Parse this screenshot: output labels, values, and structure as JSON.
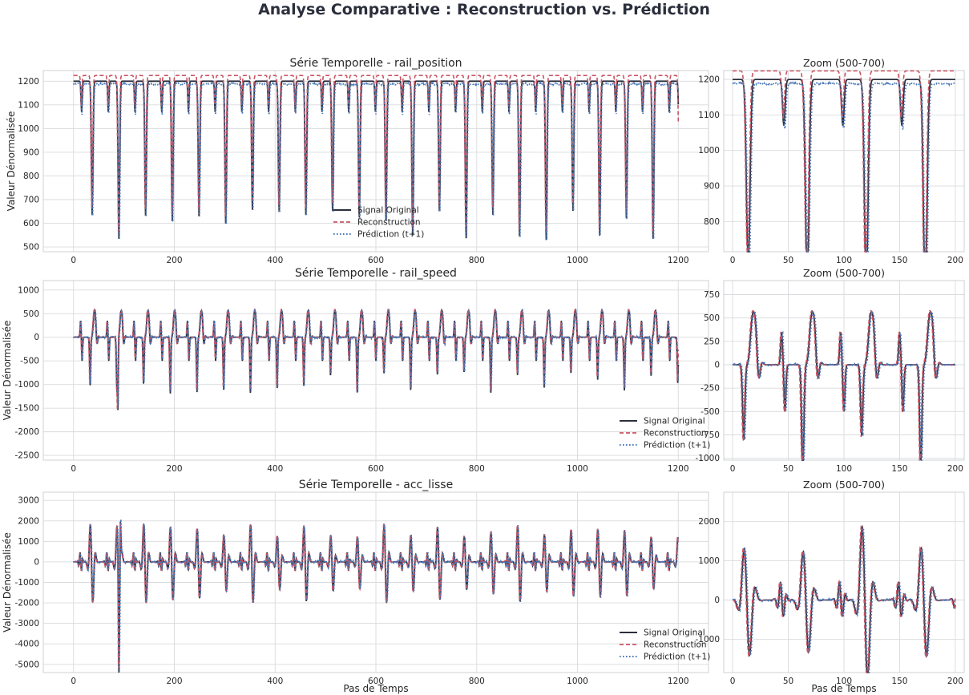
{
  "figure": {
    "title": "Analyse Comparative : Reconstruction vs. Prédiction",
    "legend": [
      "Signal Original",
      "Reconstruction",
      "Prédiction (t+1)"
    ],
    "colors": {
      "original": "#2c2f3d",
      "reconstruction": "#c95462",
      "prediction": "#4a78b8"
    },
    "xlabel": "Pas de Temps",
    "ylabel": "Valeur Dénormalisée"
  },
  "chart_data": [
    {
      "type": "line",
      "title": "Série Temporelle - rail_position",
      "ylabel": "Valeur Dénormalisée",
      "xlabel": "",
      "xlim": [
        -60,
        1260
      ],
      "ylim": [
        480,
        1245
      ],
      "xticks": [
        0,
        200,
        400,
        600,
        800,
        1000,
        1200
      ],
      "yticks": [
        500,
        600,
        700,
        800,
        900,
        1000,
        1100,
        1200
      ],
      "legend_position": "lower-center",
      "signal": "position",
      "x_range": [
        0,
        1200
      ],
      "series": [
        {
          "name": "Signal Original"
        },
        {
          "name": "Reconstruction"
        },
        {
          "name": "Prédiction (t+1)"
        }
      ]
    },
    {
      "type": "line",
      "title": "Zoom (500-700)",
      "xlabel": "",
      "xlim": [
        -8,
        208
      ],
      "ylim": [
        715,
        1225
      ],
      "xticks": [
        0,
        50,
        100,
        150,
        200
      ],
      "yticks": [
        800,
        900,
        1000,
        1100,
        1200
      ],
      "signal": "position",
      "x_range": [
        0,
        200
      ]
    },
    {
      "type": "line",
      "title": "Série Temporelle - rail_speed",
      "ylabel": "Valeur Dénormalisée",
      "xlabel": "",
      "xlim": [
        -60,
        1260
      ],
      "ylim": [
        -2600,
        1200
      ],
      "xticks": [
        0,
        200,
        400,
        600,
        800,
        1000,
        1200
      ],
      "yticks": [
        -2500,
        -2000,
        -1500,
        -1000,
        -500,
        0,
        500,
        1000
      ],
      "legend_position": "lower-right",
      "signal": "speed",
      "x_range": [
        0,
        1200
      ],
      "series": [
        {
          "name": "Signal Original"
        },
        {
          "name": "Reconstruction"
        },
        {
          "name": "Prédiction (t+1)"
        }
      ]
    },
    {
      "type": "line",
      "title": "Zoom (500-700)",
      "xlabel": "",
      "xlim": [
        -8,
        208
      ],
      "ylim": [
        -1020,
        900
      ],
      "xticks": [
        0,
        50,
        100,
        150,
        200
      ],
      "yticks": [
        -1000,
        -750,
        -500,
        -250,
        0,
        250,
        500,
        750
      ],
      "signal": "speed",
      "x_range": [
        0,
        200
      ]
    },
    {
      "type": "line",
      "title": "Série Temporelle - acc_lisse",
      "ylabel": "Valeur Dénormalisée",
      "xlabel": "Pas de Temps",
      "xlim": [
        -60,
        1260
      ],
      "ylim": [
        -5400,
        3400
      ],
      "xticks": [
        0,
        200,
        400,
        600,
        800,
        1000,
        1200
      ],
      "yticks": [
        -5000,
        -4000,
        -3000,
        -2000,
        -1000,
        0,
        1000,
        2000,
        3000
      ],
      "legend_position": "lower-right",
      "signal": "acc",
      "x_range": [
        0,
        1200
      ],
      "series": [
        {
          "name": "Signal Original"
        },
        {
          "name": "Reconstruction"
        },
        {
          "name": "Prédiction (t+1)"
        }
      ]
    },
    {
      "type": "line",
      "title": "Zoom (500-700)",
      "xlabel": "Pas de Temps",
      "xlim": [
        -8,
        208
      ],
      "ylim": [
        -1850,
        2750
      ],
      "xticks": [
        0,
        50,
        100,
        150,
        200
      ],
      "yticks": [
        -1000,
        0,
        1000,
        2000
      ],
      "signal": "acc",
      "x_range": [
        0,
        200
      ]
    }
  ]
}
